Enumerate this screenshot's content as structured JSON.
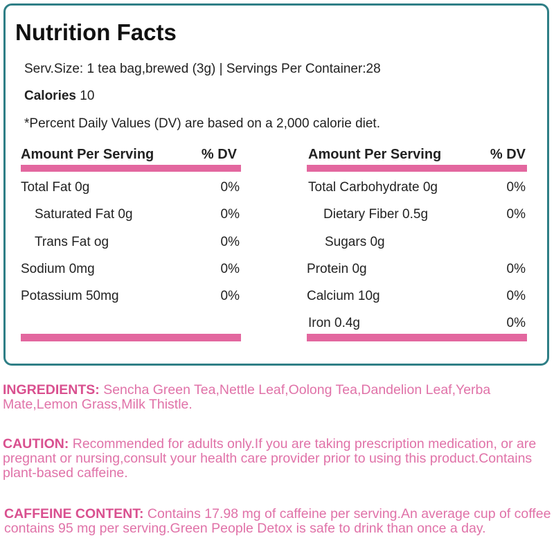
{
  "header": {
    "title": "Nutrition Facts",
    "serving": "Serv.Size: 1 tea bag,brewed (3g) | Servings Per Container:28",
    "calories": {
      "label": "Calories",
      "value": 10
    },
    "dv_note": "*Percent Daily Values (DV) are based on a 2,000 calorie diet."
  },
  "tables": [
    {
      "header": {
        "amount": "Amount Per Serving",
        "dv": "% DV"
      },
      "rows": [
        {
          "name": "Total Fat 0g",
          "dv": "0%"
        },
        {
          "name": "Saturated Fat 0g",
          "dv": "0%"
        },
        {
          "name": "Trans Fat og",
          "dv": "0%"
        },
        {
          "name": "Sodium 0mg",
          "dv": "0%"
        },
        {
          "name": "Potassium 50mg",
          "dv": "0%"
        }
      ]
    },
    {
      "header": {
        "amount": "Amount Per Serving",
        "dv": "% DV"
      },
      "rows": [
        {
          "name": "Total Carbohydrate 0g",
          "dv": "0%"
        },
        {
          "name": "Dietary Fiber 0.5g",
          "dv": "0%"
        },
        {
          "name": "Sugars 0g"
        },
        {
          "name": "Protein 0g",
          "dv": "0%"
        },
        {
          "name": "Calcium 10g",
          "dv": "0%"
        },
        {
          "name": "Iron 0.4g",
          "dv": "0%"
        }
      ]
    }
  ],
  "notes": [
    {
      "label": "INGREDIENTS:",
      "text": "Sencha Green Tea,Nettle Leaf,Oolong Tea,Dandelion Leaf,Yerba Mate,Lemon Grass,Milk Thistle."
    },
    {
      "label": "CAUTION:",
      "text": "Recommended for adults only.If you are taking prescription medication, or are pregnant or nursing,consult your health care provider prior to using this product.Contains plant-based caffeine."
    },
    {
      "label": "CAFFEINE CONTENT:",
      "text": "Contains 17.98 mg of caffeine per serving.An average cup of coffee contains 95 mg per serving.Green People Detox is safe to drink than once a day."
    }
  ]
}
